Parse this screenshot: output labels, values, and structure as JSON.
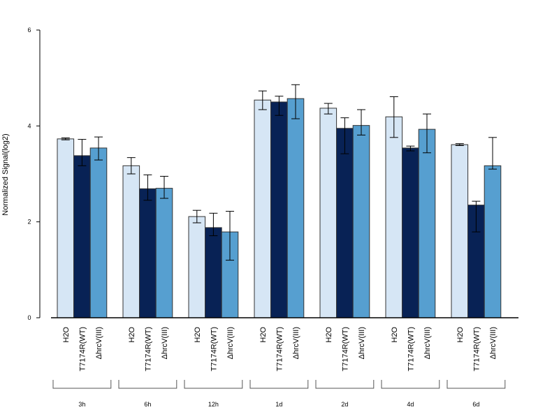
{
  "chart_data": {
    "type": "bar",
    "title": "",
    "xlabel": "",
    "ylabel": "Normalized Signal(log2)",
    "ylim": [
      0,
      6
    ],
    "yticks": [
      0,
      2,
      4,
      6
    ],
    "grid": false,
    "legend": "none",
    "groups": [
      "3h",
      "6h",
      "12h",
      "1d",
      "2d",
      "4d",
      "6d"
    ],
    "series": [
      {
        "label": "H2O",
        "color": "#d6e6f5",
        "values": [
          3.73,
          3.17,
          2.11,
          4.54,
          4.37,
          4.19,
          3.61
        ],
        "err_low": [
          3.71,
          3.0,
          1.98,
          4.34,
          4.25,
          3.76,
          3.59
        ],
        "err_high": [
          3.75,
          3.34,
          2.24,
          4.73,
          4.47,
          4.61,
          3.63
        ]
      },
      {
        "label": "T7174R(WT)",
        "color": "#082255",
        "values": [
          3.38,
          2.69,
          1.88,
          4.5,
          3.95,
          3.54,
          2.35
        ],
        "err_low": [
          3.17,
          2.45,
          1.71,
          4.22,
          3.42,
          3.48,
          1.79
        ],
        "err_high": [
          3.72,
          2.98,
          2.18,
          4.62,
          4.17,
          3.58,
          2.43
        ]
      },
      {
        "label": "ΔhrcV(III)",
        "color": "#569fd0",
        "values": [
          3.54,
          2.7,
          1.79,
          4.57,
          4.01,
          3.93,
          3.17
        ],
        "err_low": [
          3.29,
          2.49,
          1.2,
          4.15,
          3.81,
          3.44,
          3.1
        ],
        "err_high": [
          3.77,
          2.95,
          2.22,
          4.86,
          4.34,
          4.25,
          3.76
        ]
      }
    ]
  }
}
